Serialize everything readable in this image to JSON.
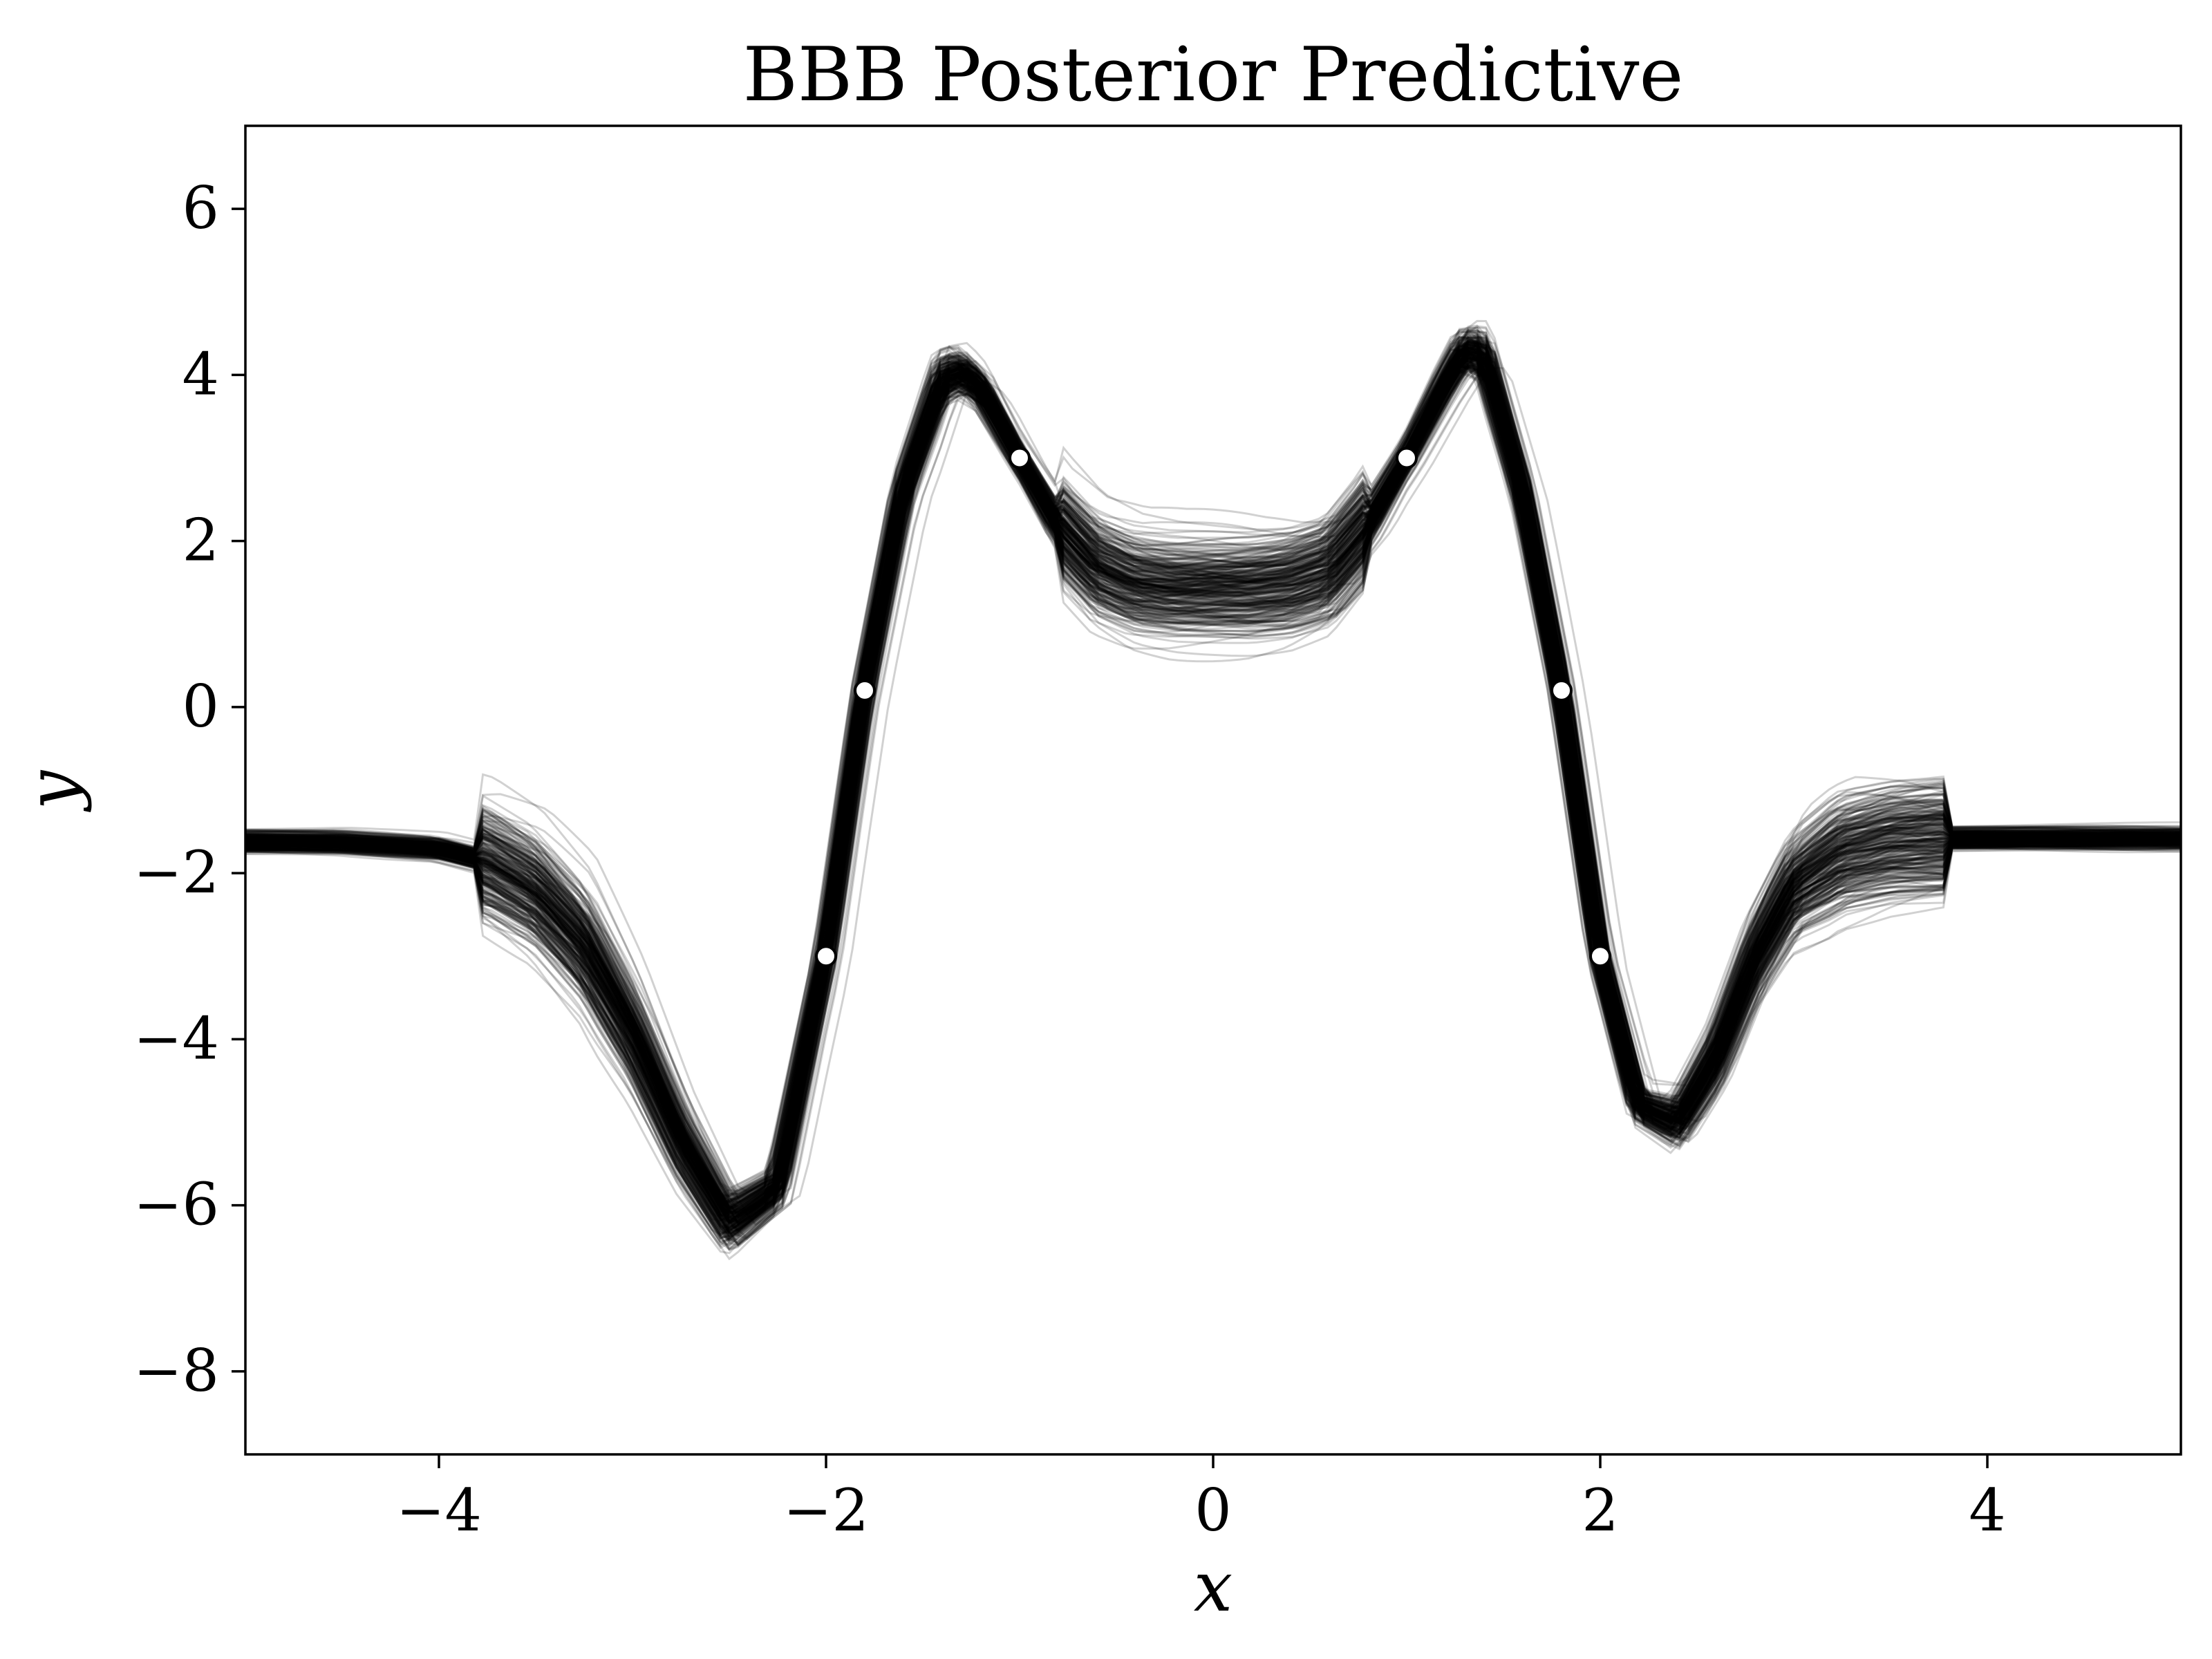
{
  "chart_data": {
    "type": "line",
    "title": "BBB Posterior Predictive",
    "xlabel": "x",
    "ylabel": "y",
    "xlim": [
      -5,
      5
    ],
    "ylim": [
      -9,
      7
    ],
    "xticks": [
      -4,
      -2,
      0,
      2,
      4
    ],
    "xtick_labels": [
      "−4",
      "−2",
      "0",
      "2",
      "4"
    ],
    "yticks": [
      6,
      4,
      2,
      0,
      -2,
      -4,
      -6,
      -8
    ],
    "ytick_labels": [
      "6",
      "4",
      "2",
      "0",
      "−2",
      "−4",
      "−6",
      "−8"
    ],
    "grid": false,
    "legend": "none",
    "line_color": "#000000",
    "marker_color": "#ffffff",
    "posterior_samples": {
      "description_count": 300,
      "mean_curve": {
        "x": [
          -5.0,
          -4.5,
          -4.0,
          -3.75,
          -3.5,
          -3.25,
          -3.0,
          -2.75,
          -2.5,
          -2.25,
          -2.0,
          -1.8,
          -1.6,
          -1.4,
          -1.3,
          -1.2,
          -1.0,
          -0.8,
          -0.6,
          -0.4,
          -0.2,
          0.0,
          0.2,
          0.4,
          0.6,
          0.8,
          1.0,
          1.2,
          1.3,
          1.4,
          1.6,
          1.8,
          2.0,
          2.2,
          2.4,
          2.6,
          2.8,
          3.0,
          3.25,
          3.5,
          3.75,
          4.0,
          4.5,
          5.0
        ],
        "y": [
          -1.62,
          -1.63,
          -1.7,
          -1.85,
          -2.2,
          -2.85,
          -3.9,
          -5.2,
          -6.2,
          -5.8,
          -3.0,
          0.2,
          2.6,
          3.95,
          4.05,
          3.85,
          3.0,
          2.2,
          1.7,
          1.5,
          1.45,
          1.45,
          1.45,
          1.5,
          1.65,
          2.2,
          3.0,
          3.9,
          4.3,
          4.25,
          2.6,
          0.2,
          -3.0,
          -4.8,
          -5.0,
          -4.2,
          -3.0,
          -2.15,
          -1.75,
          -1.62,
          -1.58,
          -1.58,
          -1.58,
          -1.58
        ]
      }
    },
    "observations": {
      "x": [
        -2.0,
        -1.8,
        -1.0,
        1.0,
        1.8,
        2.0
      ],
      "y": [
        -3.0,
        0.2,
        3.0,
        3.0,
        0.2,
        -3.0
      ]
    }
  }
}
